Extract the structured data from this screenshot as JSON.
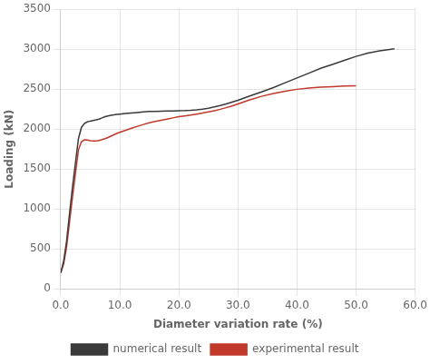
{
  "chart_data": {
    "type": "line",
    "xlabel": "Diameter variation rate (%)",
    "ylabel": "Loading (kN)",
    "xlim": [
      0.0,
      60.0
    ],
    "ylim": [
      0,
      3500
    ],
    "xticks": [
      {
        "value": 0.0,
        "label": "0.0"
      },
      {
        "value": 10.0,
        "label": "10.0"
      },
      {
        "value": 20.0,
        "label": "20.0"
      },
      {
        "value": 30.0,
        "label": "30.0"
      },
      {
        "value": 40.0,
        "label": "40.0"
      },
      {
        "value": 50.0,
        "label": "50.0"
      },
      {
        "value": 60.0,
        "label": "60.0"
      }
    ],
    "yticks": [
      0,
      500,
      1000,
      1500,
      2000,
      2500,
      3000,
      3500
    ],
    "grid": true,
    "legend": "bottom",
    "series": [
      {
        "name": "numerical result",
        "color": "#3a3a3a",
        "x": [
          0.0,
          0.5,
          1.0,
          1.5,
          2.0,
          2.5,
          3.0,
          3.5,
          4.0,
          4.5,
          5.0,
          5.5,
          6.0,
          6.5,
          7.0,
          7.5,
          8.0,
          8.5,
          9.0,
          9.5,
          10.0,
          11.0,
          12.0,
          13.0,
          14.0,
          15.0,
          16.0,
          17.0,
          18.0,
          19.0,
          20.0,
          21.0,
          22.0,
          23.0,
          24.0,
          25.0,
          26.0,
          27.0,
          28.0,
          29.0,
          30.0,
          32.0,
          34.0,
          36.0,
          38.0,
          40.0,
          42.0,
          44.0,
          46.0,
          48.0,
          50.0,
          52.0,
          54.0,
          56.5
        ],
        "values": [
          200,
          350,
          600,
          950,
          1280,
          1580,
          1880,
          2020,
          2070,
          2090,
          2100,
          2108,
          2115,
          2125,
          2140,
          2155,
          2165,
          2172,
          2178,
          2183,
          2188,
          2195,
          2202,
          2208,
          2215,
          2220,
          2222,
          2224,
          2226,
          2228,
          2230,
          2232,
          2236,
          2242,
          2250,
          2262,
          2278,
          2295,
          2315,
          2338,
          2360,
          2415,
          2465,
          2520,
          2580,
          2640,
          2700,
          2760,
          2810,
          2860,
          2910,
          2950,
          2980,
          3005
        ]
      },
      {
        "name": "experimental result",
        "color": "#c0392b",
        "x": [
          0.0,
          0.5,
          1.0,
          1.5,
          2.0,
          2.5,
          3.0,
          3.5,
          4.0,
          4.5,
          5.0,
          5.5,
          6.0,
          6.5,
          7.0,
          7.5,
          8.0,
          8.5,
          9.0,
          9.5,
          10.0,
          11.0,
          12.0,
          13.0,
          14.0,
          15.0,
          16.0,
          17.0,
          18.0,
          19.0,
          20.0,
          21.0,
          22.0,
          23.0,
          24.0,
          25.0,
          26.0,
          27.0,
          28.0,
          29.0,
          30.0,
          32.0,
          34.0,
          36.0,
          38.0,
          40.0,
          42.0,
          44.0,
          46.0,
          48.0,
          50.0
        ],
        "values": [
          200,
          310,
          530,
          840,
          1150,
          1450,
          1740,
          1840,
          1865,
          1862,
          1855,
          1852,
          1853,
          1858,
          1868,
          1880,
          1895,
          1912,
          1928,
          1945,
          1960,
          1985,
          2010,
          2035,
          2058,
          2078,
          2095,
          2110,
          2125,
          2140,
          2155,
          2165,
          2175,
          2188,
          2200,
          2215,
          2230,
          2248,
          2268,
          2290,
          2315,
          2365,
          2410,
          2445,
          2475,
          2498,
          2515,
          2525,
          2532,
          2538,
          2542
        ]
      }
    ]
  }
}
